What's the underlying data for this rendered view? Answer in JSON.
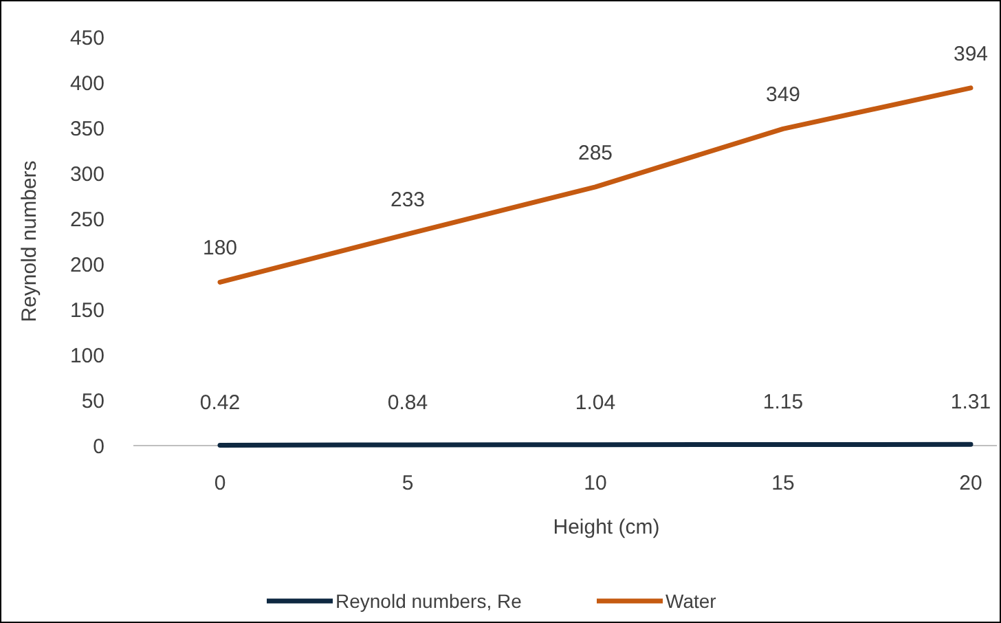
{
  "chart_data": {
    "type": "line",
    "xlabel": "Height (cm)",
    "ylabel": "Reynold numbers",
    "categories": [
      "0",
      "5",
      "10",
      "15",
      "20"
    ],
    "series": [
      {
        "name": "Reynold numbers, Re",
        "color": "#0e2841",
        "values": [
          0.42,
          0.84,
          1.04,
          1.15,
          1.31
        ]
      },
      {
        "name": "Water",
        "color": "#c55a11",
        "values": [
          180,
          233,
          285,
          349,
          394
        ]
      }
    ],
    "ylim": [
      0,
      450
    ],
    "yticks": [
      0,
      50,
      100,
      150,
      200,
      250,
      300,
      350,
      400,
      450
    ],
    "data_labels": true,
    "legend": "bottom",
    "marker": "none",
    "line_style": "solid",
    "grid": false
  }
}
